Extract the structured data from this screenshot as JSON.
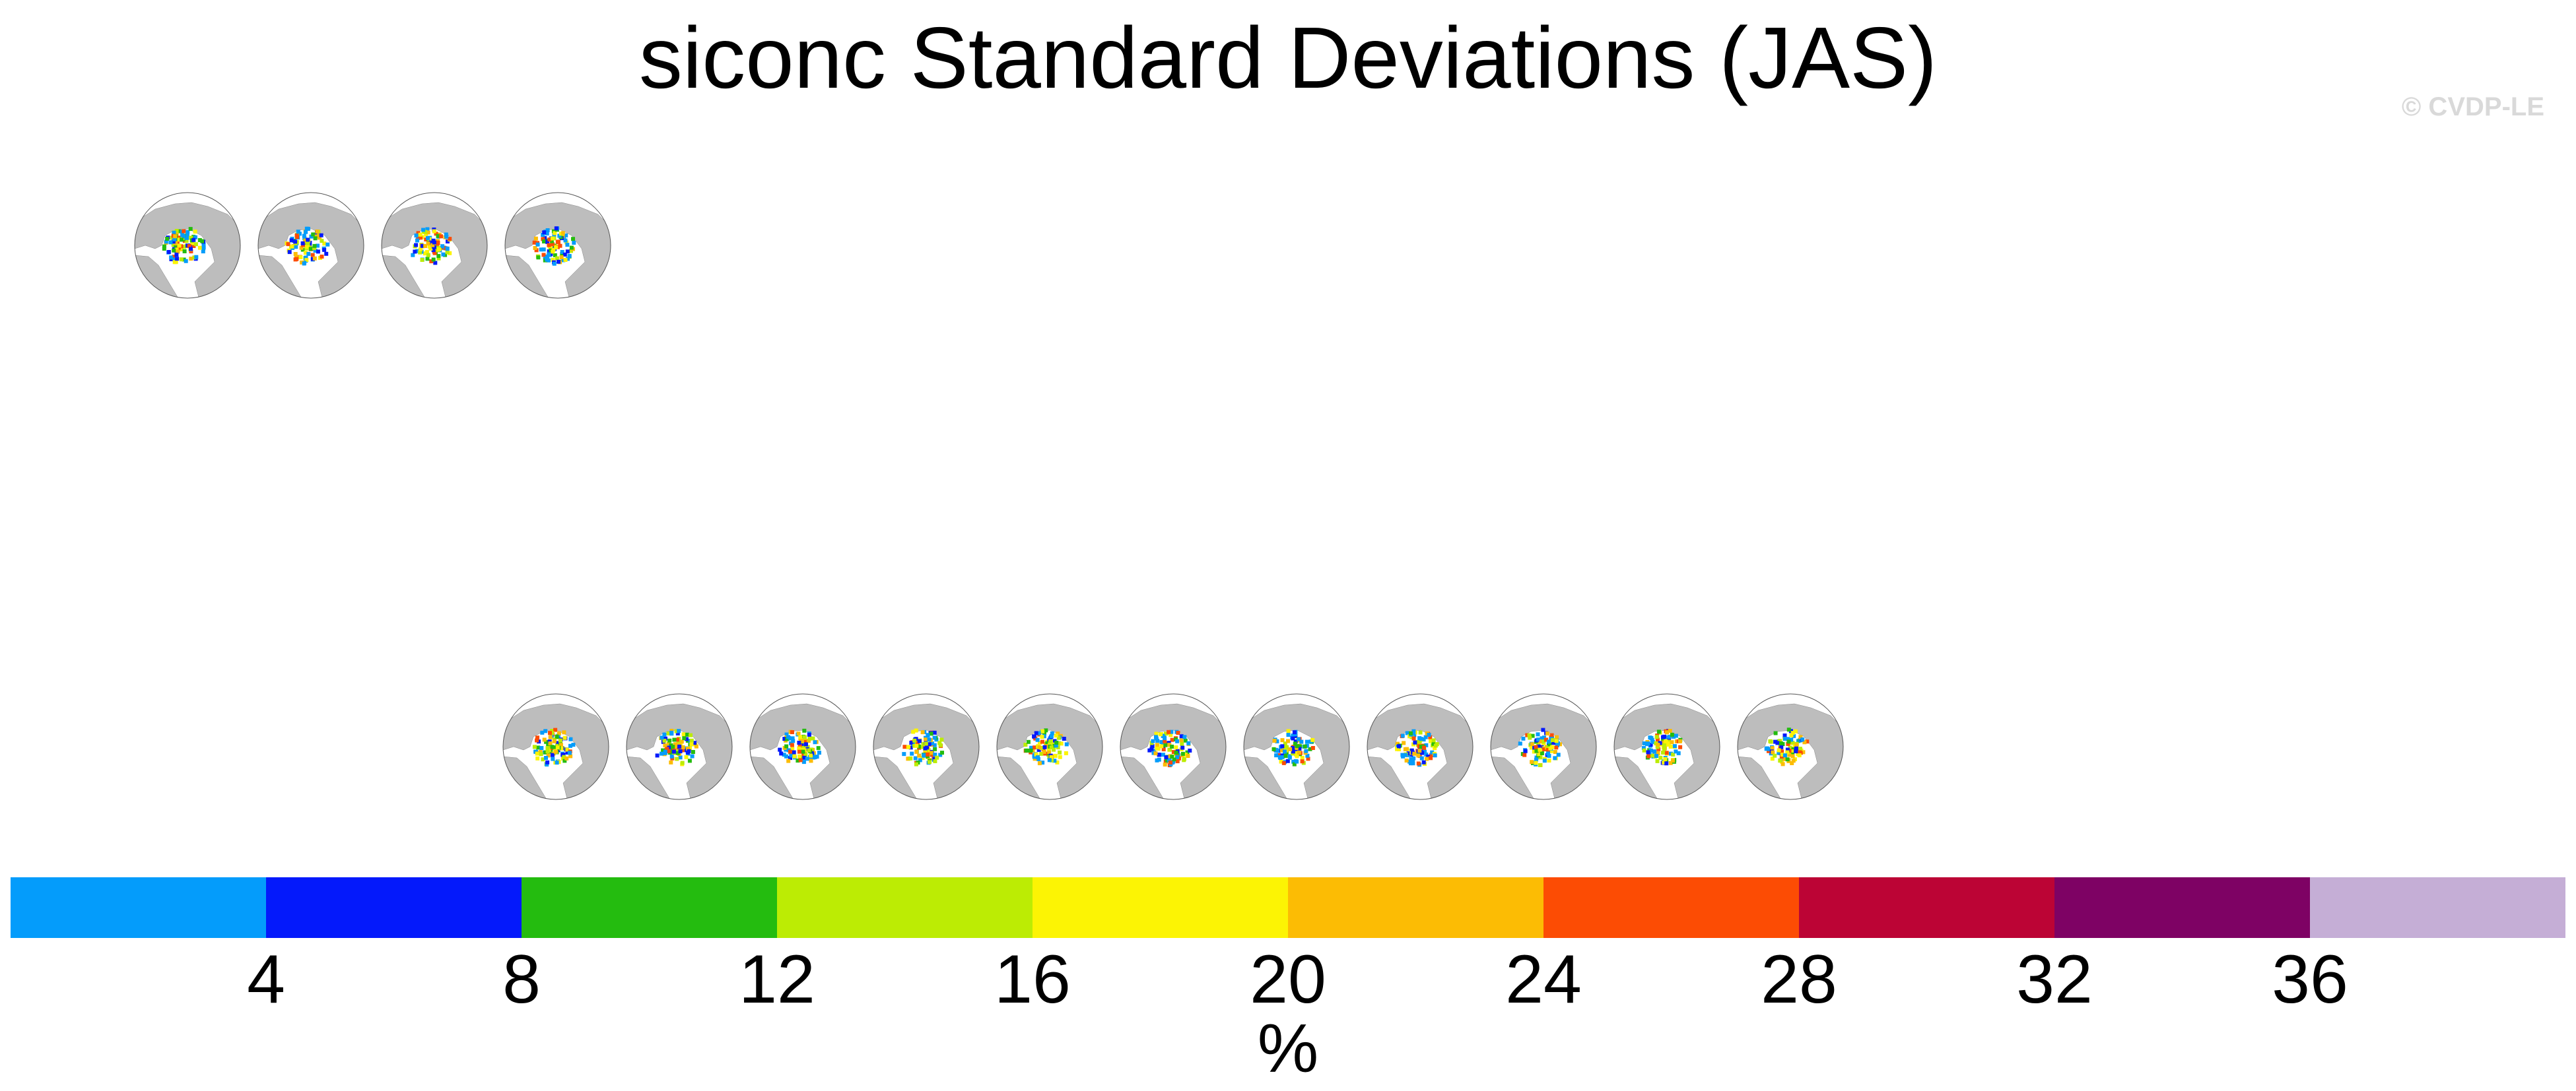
{
  "chart_data": {
    "type": "heatmap",
    "title": "siconc Standard Deviations (JAS)",
    "watermark": "© CVDP-LE",
    "panel_rows": [
      {
        "row": "observations",
        "panels": 4,
        "panel_titles": [
          "",
          "",
          "",
          ""
        ]
      },
      {
        "row": "ensemble_members",
        "panels": 11,
        "panel_titles": [
          "",
          "",
          "",
          "",
          "",
          "",
          "",
          "",
          "",
          "",
          ""
        ]
      }
    ],
    "colorbar": {
      "label": "%",
      "ticks": [
        "4",
        "8",
        "12",
        "16",
        "20",
        "24",
        "28",
        "32",
        "36"
      ],
      "bounds": [
        4,
        8,
        12,
        16,
        20,
        24,
        28,
        32,
        36
      ],
      "colors": [
        "#049cfb",
        "#0419fb",
        "#24bc0f",
        "#bcec04",
        "#fcf404",
        "#fcbc04",
        "#fc4c04",
        "#bc0435",
        "#7e0264",
        "#c5aed6"
      ]
    },
    "map_colors": {
      "land": "#bdbdbd",
      "ocean": "#ffffff",
      "outline": "#555555"
    }
  }
}
